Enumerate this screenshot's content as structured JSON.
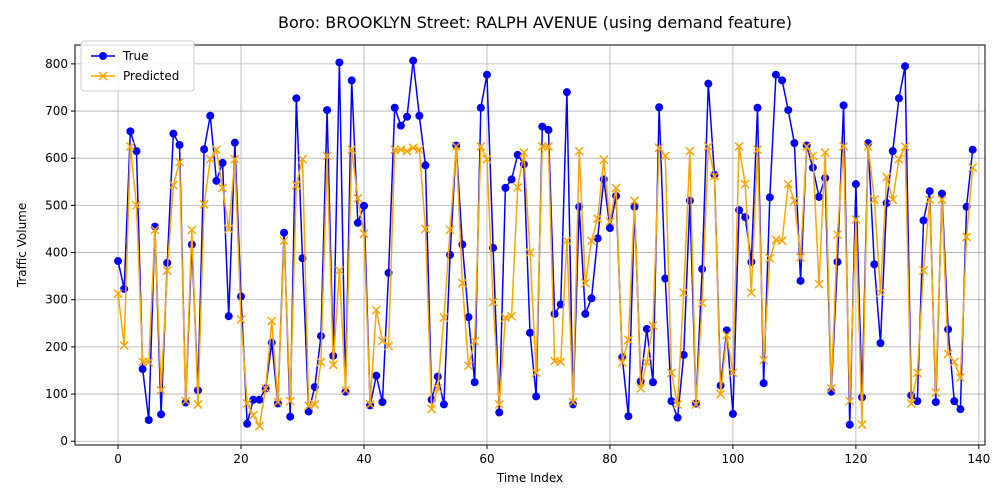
{
  "chart_data": {
    "type": "line",
    "title": "Boro: BROOKLYN Street: RALPH AVENUE (using demand feature)",
    "xlabel": "Time Index",
    "ylabel": "Traffic Volume",
    "xlim": [
      -7,
      141
    ],
    "ylim": [
      -8,
      840
    ],
    "xticks": [
      0,
      20,
      40,
      60,
      80,
      100,
      120,
      140
    ],
    "yticks": [
      0,
      100,
      200,
      300,
      400,
      500,
      600,
      700,
      800
    ],
    "grid": true,
    "legend_position": "top-left",
    "series": [
      {
        "name": "True",
        "color": "#0000ff",
        "marker": "circle",
        "values": [
          382,
          323,
          657,
          615,
          153,
          45,
          455,
          57,
          378,
          652,
          628,
          82,
          417,
          108,
          619,
          690,
          552,
          590,
          265,
          633,
          307,
          37,
          88,
          88,
          112,
          209,
          80,
          442,
          52,
          727,
          388,
          63,
          115,
          223,
          702,
          181,
          803,
          105,
          765,
          463,
          499,
          76,
          139,
          83,
          357,
          707,
          669,
          688,
          807,
          690,
          585,
          88,
          137,
          78,
          395,
          627,
          417,
          263,
          125,
          707,
          777,
          410,
          61,
          537,
          555,
          607,
          587,
          230,
          95,
          667,
          660,
          270,
          290,
          740,
          78,
          497,
          270,
          303,
          430,
          555,
          452,
          520,
          178,
          53,
          497,
          127,
          238,
          125,
          708,
          345,
          85,
          50,
          183,
          510,
          80,
          365,
          758,
          565,
          118,
          235,
          58,
          490,
          475,
          380,
          707,
          123,
          517,
          777,
          765,
          702,
          632,
          340,
          627,
          580,
          518,
          558,
          105,
          380,
          712,
          35,
          545,
          93,
          632,
          375,
          208,
          505,
          615,
          727,
          795,
          97,
          85,
          468,
          530,
          83,
          525,
          237,
          85,
          68,
          497,
          618
        ]
      },
      {
        "name": "Predicted",
        "color": "#ffa500",
        "marker": "x",
        "values": [
          313,
          203,
          625,
          500,
          168,
          168,
          448,
          108,
          362,
          543,
          592,
          85,
          448,
          78,
          502,
          598,
          618,
          537,
          450,
          598,
          258,
          80,
          55,
          32,
          112,
          255,
          83,
          425,
          85,
          543,
          598,
          75,
          78,
          168,
          605,
          162,
          362,
          108,
          618,
          515,
          440,
          78,
          278,
          213,
          202,
          618,
          618,
          615,
          622,
          618,
          450,
          68,
          112,
          262,
          448,
          625,
          335,
          160,
          212,
          625,
          598,
          295,
          78,
          262,
          265,
          538,
          612,
          400,
          145,
          625,
          625,
          170,
          168,
          425,
          83,
          615,
          335,
          425,
          472,
          597,
          465,
          537,
          167,
          215,
          510,
          112,
          168,
          245,
          622,
          605,
          145,
          78,
          315,
          615,
          78,
          293,
          625,
          562,
          100,
          225,
          145,
          625,
          545,
          315,
          618,
          172,
          388,
          427,
          425,
          545,
          510,
          390,
          625,
          605,
          333,
          612,
          112,
          438,
          625,
          85,
          470,
          35,
          625,
          512,
          315,
          560,
          512,
          598,
          625,
          80,
          145,
          362,
          512,
          103,
          512,
          185,
          168,
          135,
          433,
          580
        ]
      }
    ]
  }
}
